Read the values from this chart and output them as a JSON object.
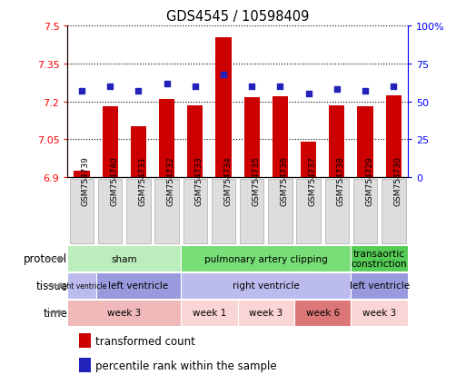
{
  "title": "GDS4545 / 10598409",
  "samples": [
    "GSM754739",
    "GSM754740",
    "GSM754731",
    "GSM754732",
    "GSM754733",
    "GSM754734",
    "GSM754735",
    "GSM754736",
    "GSM754737",
    "GSM754738",
    "GSM754729",
    "GSM754730"
  ],
  "bar_values": [
    6.925,
    7.18,
    7.1,
    7.21,
    7.185,
    7.455,
    7.215,
    7.22,
    7.04,
    7.185,
    7.18,
    7.225
  ],
  "percentile_values": [
    57,
    60,
    57,
    62,
    60,
    68,
    60,
    60,
    55,
    58,
    57,
    60
  ],
  "ylim_left": [
    6.9,
    7.5
  ],
  "ylim_right": [
    0,
    100
  ],
  "yticks_left": [
    6.9,
    7.05,
    7.2,
    7.35,
    7.5
  ],
  "yticks_right": [
    0,
    25,
    50,
    75,
    100
  ],
  "ytick_labels_left": [
    "6.9",
    "7.05",
    "7.2",
    "7.35",
    "7.5"
  ],
  "ytick_labels_right": [
    "0",
    "25",
    "50",
    "75",
    "100%"
  ],
  "bar_color": "#cc0000",
  "dot_color": "#2222bb",
  "protocol_row": {
    "groups": [
      {
        "label": "sham",
        "start": 0,
        "end": 4,
        "color": "#bbeebc"
      },
      {
        "label": "pulmonary artery clipping",
        "start": 4,
        "end": 10,
        "color": "#77dd77"
      },
      {
        "label": "transaortic\nconstriction",
        "start": 10,
        "end": 12,
        "color": "#55cc55"
      }
    ]
  },
  "tissue_row": {
    "groups": [
      {
        "label": "right ventricle",
        "start": 0,
        "end": 1,
        "color": "#bbbbee",
        "fontsize": 5.5
      },
      {
        "label": "left ventricle",
        "start": 1,
        "end": 4,
        "color": "#9999dd"
      },
      {
        "label": "right ventricle",
        "start": 4,
        "end": 10,
        "color": "#bbbbee"
      },
      {
        "label": "left ventricle",
        "start": 10,
        "end": 12,
        "color": "#9999dd"
      }
    ]
  },
  "time_row": {
    "groups": [
      {
        "label": "week 3",
        "start": 0,
        "end": 4,
        "color": "#f0b8b8"
      },
      {
        "label": "week 1",
        "start": 4,
        "end": 6,
        "color": "#fad5d5"
      },
      {
        "label": "week 3",
        "start": 6,
        "end": 8,
        "color": "#fad5d5"
      },
      {
        "label": "week 6",
        "start": 8,
        "end": 10,
        "color": "#dd7777"
      },
      {
        "label": "week 3",
        "start": 10,
        "end": 12,
        "color": "#fad5d5"
      }
    ]
  },
  "row_labels": [
    "protocol",
    "tissue",
    "time"
  ],
  "legend_items": [
    {
      "label": "transformed count",
      "color": "#cc0000"
    },
    {
      "label": "percentile rank within the sample",
      "color": "#2222bb"
    }
  ],
  "sample_bg_color": "#dddddd",
  "sample_border_color": "#aaaaaa"
}
